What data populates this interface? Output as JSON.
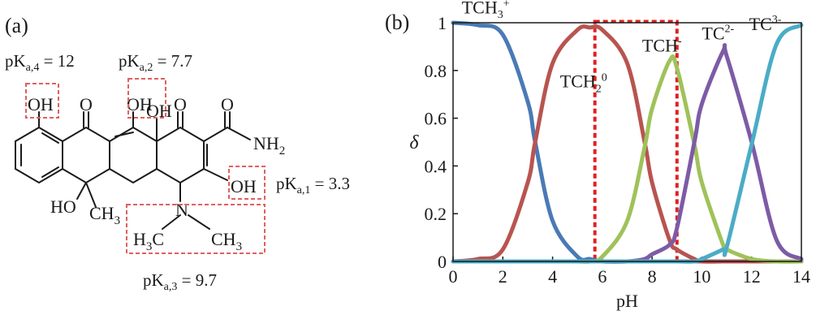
{
  "panel_a": {
    "label": "(a)",
    "pka4": {
      "base": "pK",
      "sub": "a,4",
      "value": " = 12"
    },
    "pka2": {
      "base": "pK",
      "sub": "a,2",
      "value": " = 7.7"
    },
    "pka1": {
      "base": "pK",
      "sub": "a,1",
      "value": " = 3.3"
    },
    "pka3": {
      "base": "pK",
      "sub": "a,3",
      "value": " = 9.7"
    },
    "atoms": {
      "oh_phenol": "OH",
      "o_left": "O",
      "oh_enol": "OH",
      "oh_bridge": "OH",
      "o_right": "O",
      "o_amide": "O",
      "nh2": "NH",
      "nh2_sub": "2",
      "oh_ring_a": "OH",
      "ho": "HO",
      "ch3": "CH",
      "ch3_sub": "3",
      "n": "N",
      "h3c": "H",
      "h3c_sub": "3",
      "h3c_c": "C",
      "ch3b": "CH",
      "ch3b_sub": "3"
    }
  },
  "panel_b": {
    "label": "(b)",
    "colors": {
      "TCH3": "#4a7ab5",
      "TCH2": "#b85450",
      "TCH": "#9fc25a",
      "TC2": "#7d5ba6",
      "TC3": "#4bacc6",
      "highlight": "#e02020"
    }
  },
  "chart_data": {
    "type": "line",
    "title": "",
    "xlabel": "pH",
    "ylabel": "δ",
    "xlim": [
      0,
      14
    ],
    "ylim": [
      0,
      1
    ],
    "xticks": [
      "0",
      "2",
      "4",
      "6",
      "8",
      "10",
      "12",
      "14"
    ],
    "yticks": [
      "0",
      "0.2",
      "0.4",
      "0.6",
      "0.8",
      "1"
    ],
    "highlight_range_pH": [
      5.7,
      9.0
    ],
    "x": [
      0,
      1,
      2,
      3,
      3.3,
      4,
      5,
      5.5,
      6,
      7,
      7.7,
      8,
      8.7,
      9,
      9.7,
      10,
      10.85,
      11,
      12,
      13,
      14
    ],
    "series": [
      {
        "name": "TCH3+",
        "label_base": "TCH",
        "label_sub": "3",
        "label_sup": "+",
        "values": [
          1.0,
          0.99,
          0.95,
          0.67,
          0.5,
          0.17,
          0.02,
          0.01,
          0.0,
          0.0,
          0.0,
          0.0,
          0.0,
          0.0,
          0.0,
          0.0,
          0.0,
          0.0,
          0.0,
          0.0,
          0.0
        ]
      },
      {
        "name": "TCH20",
        "label_base": "TCH",
        "label_sub": "2",
        "label_sup": "0",
        "values": [
          0.0,
          0.01,
          0.05,
          0.33,
          0.5,
          0.83,
          0.97,
          0.98,
          0.97,
          0.83,
          0.5,
          0.33,
          0.09,
          0.05,
          0.01,
          0.0,
          0.0,
          0.0,
          0.0,
          0.0,
          0.0
        ]
      },
      {
        "name": "TCH-",
        "label_base": "TCH",
        "label_sub": "",
        "label_sup": "-",
        "values": [
          0.0,
          0.0,
          0.0,
          0.0,
          0.0,
          0.0,
          0.0,
          0.0,
          0.02,
          0.17,
          0.48,
          0.64,
          0.84,
          0.81,
          0.49,
          0.33,
          0.07,
          0.05,
          0.01,
          0.0,
          0.0
        ]
      },
      {
        "name": "TC2-",
        "label_base": "TC",
        "label_sub": "",
        "label_sup": "2-",
        "values": [
          0.0,
          0.0,
          0.0,
          0.0,
          0.0,
          0.0,
          0.0,
          0.0,
          0.0,
          0.0,
          0.01,
          0.03,
          0.07,
          0.14,
          0.5,
          0.66,
          0.88,
          0.86,
          0.5,
          0.09,
          0.01
        ]
      },
      {
        "name": "TC3-",
        "label_base": "TC",
        "label_sub": "",
        "label_sup": "3-",
        "values": [
          0.0,
          0.0,
          0.0,
          0.0,
          0.0,
          0.0,
          0.0,
          0.0,
          0.0,
          0.0,
          0.0,
          0.0,
          0.0,
          0.0,
          0.0,
          0.01,
          0.05,
          0.06,
          0.49,
          0.91,
          0.99
        ]
      }
    ]
  }
}
